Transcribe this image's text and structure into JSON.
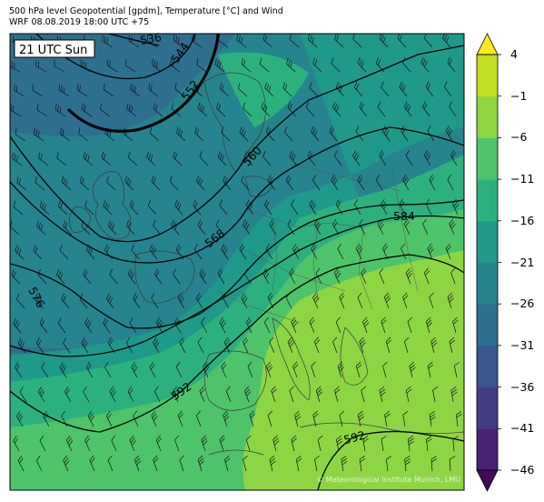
{
  "header": {
    "title_line1": "500 hPa level Geopotential [gpdm], Temperature [°C] and Wind",
    "title_line2": "WRF 08.08.2019 18:00 UTC +75"
  },
  "map": {
    "time_label": "21 UTC Sun",
    "credit": "© Meteorological Institute Munich, LMU",
    "contour_labels": [
      {
        "text": "536"
      },
      {
        "text": "544"
      },
      {
        "text": "552"
      },
      {
        "text": "560"
      },
      {
        "text": "568"
      },
      {
        "text": "576"
      },
      {
        "text": "584"
      },
      {
        "text": "592"
      },
      {
        "text": "592"
      }
    ]
  },
  "colorbar": {
    "ticks": [
      "4",
      "−1",
      "−6",
      "−11",
      "−16",
      "−21",
      "−26",
      "−31",
      "−36",
      "−41",
      "−46"
    ],
    "colors": [
      "#450a57",
      "#482272",
      "#433d84",
      "#38578c",
      "#2e6f8e",
      "#25848e",
      "#1f998a",
      "#2cb17e",
      "#4ec46a",
      "#8ed543",
      "#c2df23",
      "#fde725"
    ]
  }
}
